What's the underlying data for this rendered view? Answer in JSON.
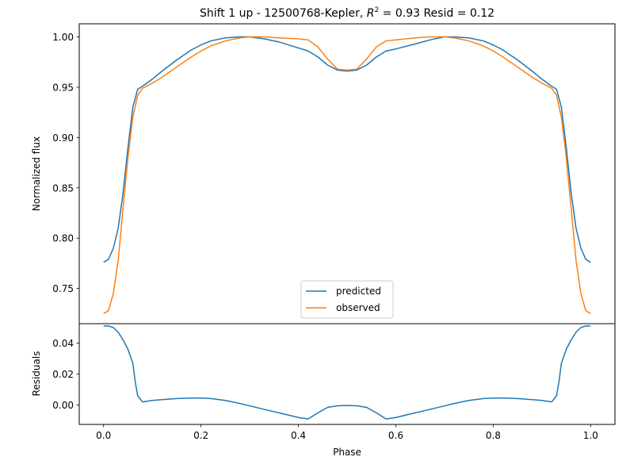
{
  "chart_data": [
    {
      "type": "line",
      "title_prefix": "Shift 1 up - 12500768-Kepler, ",
      "title_r2_symbol": "R",
      "title_r2_exponent": "2",
      "title_suffix": " = 0.93 Resid = 0.12",
      "xlabel": "",
      "ylabel": "Normalized flux",
      "xlim": [
        -0.05,
        1.05
      ],
      "ylim": [
        0.715,
        1.013
      ],
      "yticks": [
        0.75,
        0.8,
        0.85,
        0.9,
        0.95,
        1.0
      ],
      "ytick_labels": [
        "0.75",
        "0.80",
        "0.85",
        "0.90",
        "0.95",
        "1.00"
      ],
      "legend_position": "lower center",
      "series": [
        {
          "name": "predicted",
          "color": "#1f77b4",
          "x": [
            0.0,
            0.01,
            0.02,
            0.03,
            0.04,
            0.05,
            0.06,
            0.07,
            0.08,
            0.1,
            0.12,
            0.15,
            0.18,
            0.2,
            0.22,
            0.25,
            0.28,
            0.3,
            0.33,
            0.36,
            0.4,
            0.42,
            0.44,
            0.46,
            0.48,
            0.5,
            0.52,
            0.54,
            0.56,
            0.58,
            0.6,
            0.64,
            0.67,
            0.7,
            0.72,
            0.75,
            0.78,
            0.8,
            0.82,
            0.85,
            0.88,
            0.9,
            0.92,
            0.93,
            0.94,
            0.95,
            0.96,
            0.97,
            0.98,
            0.99,
            1.0
          ],
          "y": [
            0.776,
            0.779,
            0.79,
            0.81,
            0.845,
            0.89,
            0.93,
            0.948,
            0.951,
            0.958,
            0.966,
            0.977,
            0.987,
            0.992,
            0.996,
            0.999,
            1.0,
            1.0,
            0.998,
            0.995,
            0.989,
            0.986,
            0.98,
            0.972,
            0.967,
            0.966,
            0.967,
            0.972,
            0.98,
            0.986,
            0.988,
            0.993,
            0.997,
            1.0,
            1.0,
            0.999,
            0.996,
            0.992,
            0.987,
            0.977,
            0.966,
            0.958,
            0.951,
            0.948,
            0.93,
            0.89,
            0.845,
            0.81,
            0.79,
            0.779,
            0.776
          ]
        },
        {
          "name": "observed",
          "color": "#ff7f0e",
          "x": [
            0.0,
            0.01,
            0.02,
            0.03,
            0.04,
            0.05,
            0.06,
            0.07,
            0.08,
            0.1,
            0.12,
            0.15,
            0.18,
            0.2,
            0.22,
            0.25,
            0.28,
            0.3,
            0.33,
            0.36,
            0.4,
            0.42,
            0.44,
            0.46,
            0.48,
            0.5,
            0.52,
            0.54,
            0.56,
            0.58,
            0.6,
            0.64,
            0.67,
            0.7,
            0.72,
            0.75,
            0.78,
            0.8,
            0.82,
            0.85,
            0.88,
            0.9,
            0.92,
            0.93,
            0.94,
            0.95,
            0.96,
            0.97,
            0.98,
            0.99,
            1.0
          ],
          "y": [
            0.725,
            0.728,
            0.745,
            0.778,
            0.83,
            0.88,
            0.92,
            0.942,
            0.949,
            0.954,
            0.96,
            0.97,
            0.98,
            0.986,
            0.991,
            0.996,
            0.999,
            1.0,
            1.0,
            0.999,
            0.998,
            0.997,
            0.99,
            0.978,
            0.968,
            0.967,
            0.968,
            0.978,
            0.99,
            0.996,
            0.997,
            0.999,
            1.0,
            1.0,
            0.999,
            0.996,
            0.991,
            0.986,
            0.98,
            0.97,
            0.96,
            0.954,
            0.949,
            0.942,
            0.92,
            0.88,
            0.83,
            0.778,
            0.745,
            0.728,
            0.725
          ]
        }
      ]
    },
    {
      "type": "line",
      "title": "",
      "xlabel": "Phase",
      "ylabel": "Residuals",
      "xlim": [
        -0.05,
        1.05
      ],
      "ylim": [
        -0.0125,
        0.0525
      ],
      "xticks": [
        0.0,
        0.2,
        0.4,
        0.6,
        0.8,
        1.0
      ],
      "xtick_labels": [
        "0.0",
        "0.2",
        "0.4",
        "0.6",
        "0.8",
        "1.0"
      ],
      "yticks": [
        0.0,
        0.02,
        0.04
      ],
      "ytick_labels": [
        "0.00",
        "0.02",
        "0.04"
      ],
      "series": [
        {
          "color": "#1f77b4",
          "x": [
            0.0,
            0.01,
            0.02,
            0.03,
            0.04,
            0.05,
            0.06,
            0.065,
            0.07,
            0.08,
            0.1,
            0.12,
            0.15,
            0.18,
            0.2,
            0.22,
            0.25,
            0.28,
            0.3,
            0.33,
            0.36,
            0.4,
            0.42,
            0.44,
            0.46,
            0.48,
            0.5,
            0.52,
            0.54,
            0.56,
            0.58,
            0.6,
            0.64,
            0.67,
            0.7,
            0.72,
            0.75,
            0.78,
            0.8,
            0.82,
            0.85,
            0.88,
            0.9,
            0.92,
            0.93,
            0.935,
            0.94,
            0.95,
            0.96,
            0.97,
            0.98,
            0.99,
            1.0
          ],
          "y": [
            0.051,
            0.051,
            0.05,
            0.047,
            0.042,
            0.036,
            0.027,
            0.015,
            0.006,
            0.002,
            0.003,
            0.0035,
            0.0042,
            0.0045,
            0.0045,
            0.0042,
            0.003,
            0.001,
            -0.0005,
            -0.0028,
            -0.005,
            -0.008,
            -0.009,
            -0.005,
            -0.0015,
            -0.0005,
            -0.0003,
            -0.0005,
            -0.0015,
            -0.005,
            -0.009,
            -0.008,
            -0.005,
            -0.0028,
            -0.0005,
            0.001,
            0.003,
            0.0042,
            0.0045,
            0.0045,
            0.0042,
            0.0035,
            0.003,
            0.002,
            0.006,
            0.015,
            0.027,
            0.036,
            0.042,
            0.047,
            0.05,
            0.051,
            0.051
          ]
        }
      ]
    }
  ]
}
